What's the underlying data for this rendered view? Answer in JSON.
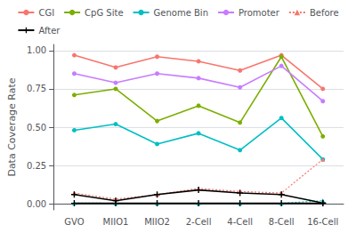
{
  "chart_data": {
    "type": "line",
    "categories": [
      "GVO",
      "MIIO1",
      "MIIO2",
      "2-Cell",
      "4-Cell",
      "8-Cell",
      "16-Cell"
    ],
    "series": [
      {
        "name": "CGI",
        "color": "#f8766d",
        "marker": "circle",
        "line_style": "solid",
        "values": [
          0.97,
          0.89,
          0.96,
          0.93,
          0.87,
          0.97,
          0.75
        ]
      },
      {
        "name": "CpG Site",
        "color": "#7cae00",
        "marker": "circle",
        "line_style": "solid",
        "values": [
          0.71,
          0.75,
          0.54,
          0.64,
          0.53,
          0.96,
          0.44
        ]
      },
      {
        "name": "Genome Bin",
        "color": "#00bfc4",
        "marker": "circle",
        "line_style": "solid",
        "values": [
          0.48,
          0.52,
          0.39,
          0.46,
          0.35,
          0.56,
          0.29
        ]
      },
      {
        "name": "Promoter",
        "color": "#c77cff",
        "marker": "circle",
        "line_style": "solid",
        "values": [
          0.85,
          0.79,
          0.85,
          0.82,
          0.76,
          0.9,
          0.67
        ]
      },
      {
        "name": "Before",
        "color": "#f8766d",
        "marker": "triangle",
        "line_style": "dotted",
        "values": [
          0.07,
          0.03,
          0.06,
          0.1,
          0.08,
          0.07,
          0.29
        ]
      },
      {
        "name": "Before",
        "color": "#00bfc4",
        "marker": "triangle",
        "line_style": "dotted",
        "values": [
          0.005,
          0.003,
          0.003,
          0.003,
          0.003,
          0.003,
          0.02
        ]
      },
      {
        "name": "After",
        "color": "#000000",
        "marker": "plus",
        "line_style": "solid",
        "values": [
          0.06,
          0.02,
          0.06,
          0.09,
          0.07,
          0.06,
          0.005
        ]
      },
      {
        "name": "After",
        "color": "#000000",
        "marker": "plus",
        "line_style": "solid",
        "values": [
          0.003,
          0.003,
          0.003,
          0.003,
          0.003,
          0.003,
          0.003
        ]
      }
    ],
    "ylabel": "Data Coverage Rate",
    "ylim": [
      -0.04,
      1.04
    ],
    "yticks": [
      {
        "value": 0,
        "label": "0.00"
      },
      {
        "value": 0.25,
        "label": "0.25"
      },
      {
        "value": 0.5,
        "label": "0.50"
      },
      {
        "value": 0.75,
        "label": "0.75"
      },
      {
        "value": 1,
        "label": "1.00"
      }
    ],
    "grid": true,
    "legend": "top"
  }
}
